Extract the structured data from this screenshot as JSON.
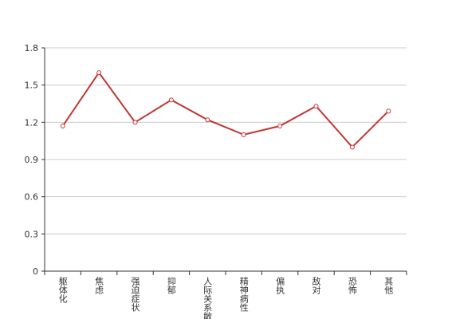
{
  "chart_data": {
    "type": "line",
    "categories": [
      "躯体化",
      "焦虑",
      "强迫症状",
      "抑郁",
      "人际关系敏感",
      "精神病性",
      "偏执",
      "敌对",
      "恐怖",
      "其他"
    ],
    "values": [
      1.17,
      1.6,
      1.2,
      1.38,
      1.22,
      1.1,
      1.17,
      1.33,
      1.0,
      1.29
    ],
    "color": "#c23531",
    "ylim": [
      0,
      1.8
    ],
    "yticks": [
      0,
      0.3,
      0.6,
      0.9,
      1.2,
      1.5,
      1.8
    ],
    "grid": true
  }
}
